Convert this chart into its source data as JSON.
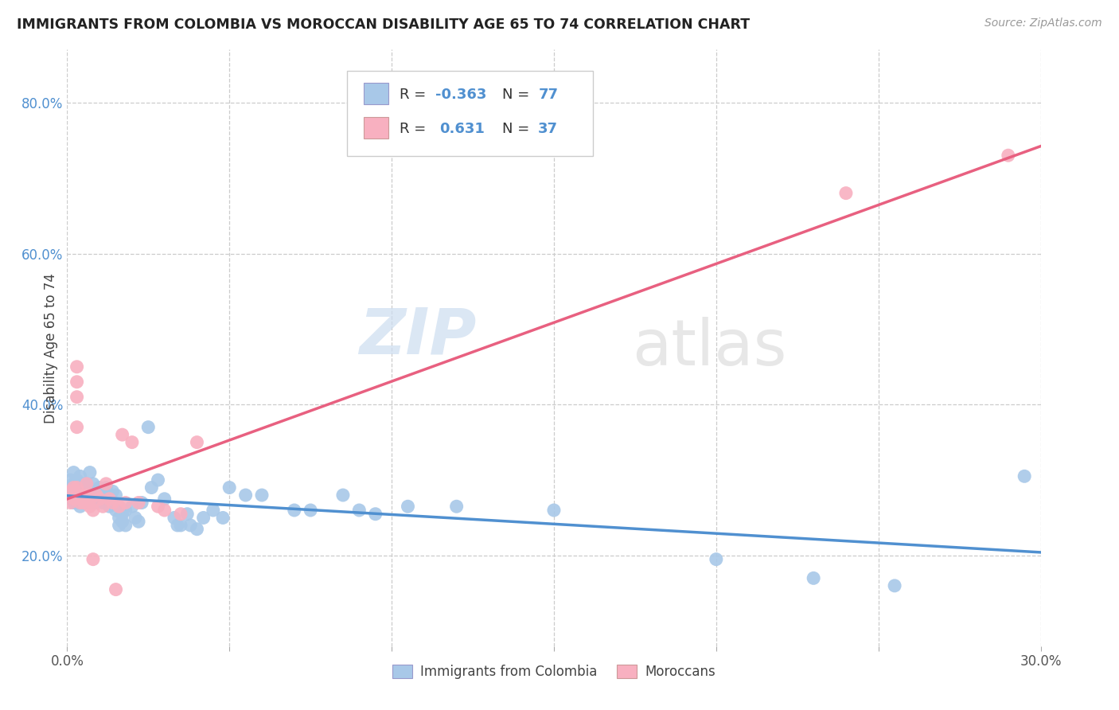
{
  "title": "IMMIGRANTS FROM COLOMBIA VS MOROCCAN DISABILITY AGE 65 TO 74 CORRELATION CHART",
  "source": "Source: ZipAtlas.com",
  "ylabel_label": "Disability Age 65 to 74",
  "x_min": 0.0,
  "x_max": 0.3,
  "y_min": 0.08,
  "y_max": 0.87,
  "x_ticks": [
    0.0,
    0.05,
    0.1,
    0.15,
    0.2,
    0.25,
    0.3
  ],
  "x_tick_labels": [
    "0.0%",
    "",
    "",
    "",
    "",
    "",
    "30.0%"
  ],
  "y_ticks": [
    0.2,
    0.4,
    0.6,
    0.8
  ],
  "y_tick_labels": [
    "20.0%",
    "40.0%",
    "60.0%",
    "80.0%"
  ],
  "colombia_color": "#a8c8e8",
  "morocco_color": "#f8b0c0",
  "colombia_line_color": "#5090d0",
  "morocco_line_color": "#e86080",
  "colombia_R": -0.363,
  "colombia_N": 77,
  "morocco_R": 0.631,
  "morocco_N": 37,
  "watermark_zip": "ZIP",
  "watermark_atlas": "atlas",
  "colombia_points": [
    [
      0.001,
      0.3
    ],
    [
      0.001,
      0.285
    ],
    [
      0.001,
      0.275
    ],
    [
      0.002,
      0.31
    ],
    [
      0.002,
      0.295
    ],
    [
      0.002,
      0.28
    ],
    [
      0.002,
      0.27
    ],
    [
      0.003,
      0.3
    ],
    [
      0.003,
      0.29
    ],
    [
      0.003,
      0.28
    ],
    [
      0.003,
      0.27
    ],
    [
      0.004,
      0.305
    ],
    [
      0.004,
      0.29
    ],
    [
      0.004,
      0.275
    ],
    [
      0.004,
      0.265
    ],
    [
      0.005,
      0.295
    ],
    [
      0.005,
      0.28
    ],
    [
      0.005,
      0.27
    ],
    [
      0.006,
      0.295
    ],
    [
      0.006,
      0.28
    ],
    [
      0.006,
      0.27
    ],
    [
      0.007,
      0.31
    ],
    [
      0.007,
      0.285
    ],
    [
      0.007,
      0.27
    ],
    [
      0.008,
      0.295
    ],
    [
      0.008,
      0.28
    ],
    [
      0.009,
      0.285
    ],
    [
      0.009,
      0.27
    ],
    [
      0.01,
      0.29
    ],
    [
      0.01,
      0.275
    ],
    [
      0.011,
      0.285
    ],
    [
      0.011,
      0.27
    ],
    [
      0.012,
      0.29
    ],
    [
      0.012,
      0.275
    ],
    [
      0.013,
      0.28
    ],
    [
      0.013,
      0.265
    ],
    [
      0.014,
      0.285
    ],
    [
      0.015,
      0.28
    ],
    [
      0.015,
      0.26
    ],
    [
      0.016,
      0.25
    ],
    [
      0.016,
      0.24
    ],
    [
      0.017,
      0.255
    ],
    [
      0.017,
      0.245
    ],
    [
      0.018,
      0.26
    ],
    [
      0.018,
      0.24
    ],
    [
      0.02,
      0.265
    ],
    [
      0.021,
      0.25
    ],
    [
      0.022,
      0.245
    ],
    [
      0.023,
      0.27
    ],
    [
      0.025,
      0.37
    ],
    [
      0.026,
      0.29
    ],
    [
      0.028,
      0.3
    ],
    [
      0.03,
      0.275
    ],
    [
      0.033,
      0.25
    ],
    [
      0.034,
      0.24
    ],
    [
      0.035,
      0.24
    ],
    [
      0.037,
      0.255
    ],
    [
      0.038,
      0.24
    ],
    [
      0.04,
      0.235
    ],
    [
      0.042,
      0.25
    ],
    [
      0.045,
      0.26
    ],
    [
      0.048,
      0.25
    ],
    [
      0.05,
      0.29
    ],
    [
      0.055,
      0.28
    ],
    [
      0.06,
      0.28
    ],
    [
      0.07,
      0.26
    ],
    [
      0.075,
      0.26
    ],
    [
      0.085,
      0.28
    ],
    [
      0.09,
      0.26
    ],
    [
      0.095,
      0.255
    ],
    [
      0.105,
      0.265
    ],
    [
      0.12,
      0.265
    ],
    [
      0.15,
      0.26
    ],
    [
      0.2,
      0.195
    ],
    [
      0.23,
      0.17
    ],
    [
      0.255,
      0.16
    ],
    [
      0.295,
      0.305
    ]
  ],
  "morocco_points": [
    [
      0.001,
      0.285
    ],
    [
      0.001,
      0.27
    ],
    [
      0.002,
      0.29
    ],
    [
      0.002,
      0.275
    ],
    [
      0.003,
      0.45
    ],
    [
      0.003,
      0.43
    ],
    [
      0.003,
      0.41
    ],
    [
      0.003,
      0.37
    ],
    [
      0.003,
      0.29
    ],
    [
      0.004,
      0.275
    ],
    [
      0.004,
      0.27
    ],
    [
      0.005,
      0.28
    ],
    [
      0.005,
      0.27
    ],
    [
      0.006,
      0.295
    ],
    [
      0.006,
      0.28
    ],
    [
      0.007,
      0.275
    ],
    [
      0.007,
      0.265
    ],
    [
      0.008,
      0.26
    ],
    [
      0.008,
      0.195
    ],
    [
      0.009,
      0.28
    ],
    [
      0.01,
      0.275
    ],
    [
      0.011,
      0.265
    ],
    [
      0.012,
      0.295
    ],
    [
      0.013,
      0.275
    ],
    [
      0.014,
      0.27
    ],
    [
      0.015,
      0.155
    ],
    [
      0.016,
      0.265
    ],
    [
      0.017,
      0.36
    ],
    [
      0.018,
      0.27
    ],
    [
      0.02,
      0.35
    ],
    [
      0.022,
      0.27
    ],
    [
      0.028,
      0.265
    ],
    [
      0.03,
      0.26
    ],
    [
      0.035,
      0.255
    ],
    [
      0.04,
      0.35
    ],
    [
      0.24,
      0.68
    ],
    [
      0.29,
      0.73
    ]
  ]
}
